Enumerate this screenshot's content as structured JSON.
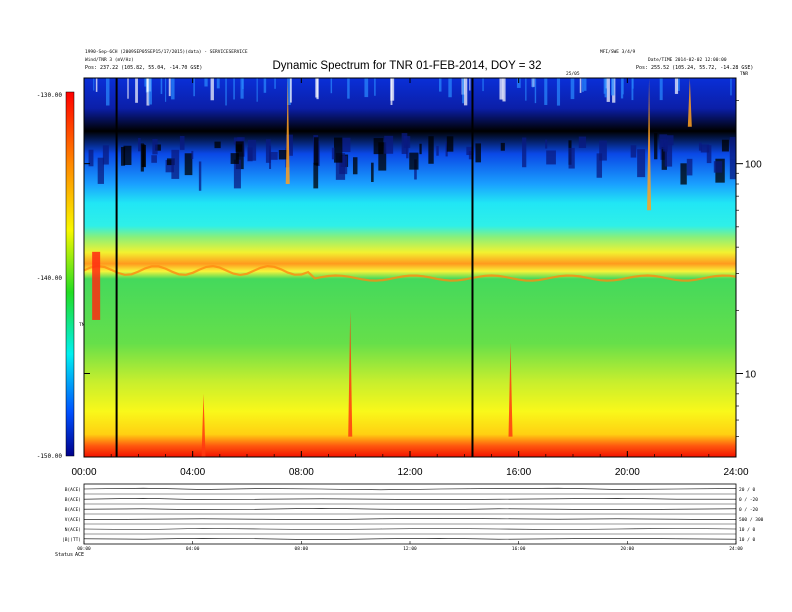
{
  "chart_data": [
    {
      "type": "heatmap",
      "title": "Dynamic Spectrum for TNR 01-FEB-2014, DOY = 32",
      "header_left": [
        "1990-Sep-6CH (2009SEP05SEP15/17/2015)(data) - SERVICESERVICE",
        "Wind/TNR 3 (mV/Hz)",
        "Pos: 237.22 (105.82, 55.04, -14.70 GSE)"
      ],
      "header_right": [
        "MFI/SWE 3/4/9",
        "Date/TIME 2014-02-02 12:00:00",
        "Pos: 255.52 (105.24, 55.72, -14.28 GSE)"
      ],
      "top_axis_marker": "25/05",
      "top_right_marker": "TNR",
      "colorbar_label": "TNR",
      "colorbar_ticks": [
        "-130.00",
        "-140.00",
        "-150.00"
      ],
      "colorbar_range": [
        -150,
        -130
      ],
      "x_ticks": [
        "00:00",
        "04:00",
        "08:00",
        "12:00",
        "16:00",
        "20:00",
        "24:00"
      ],
      "x_range_hours": [
        0,
        24
      ],
      "y_scale": "log",
      "y_ticks": [
        "100",
        "10"
      ],
      "y_tick_values": [
        100,
        10
      ],
      "y_range_khz": [
        4,
        256
      ],
      "data_gap_lines_hours": [
        1.2,
        14.3
      ],
      "bands": [
        {
          "name": "strong-low-frequency-emission",
          "freq_range": [
            4,
            5
          ],
          "level": -130
        },
        {
          "name": "yellow-continuum",
          "freq_range": [
            5,
            12
          ],
          "level": -136
        },
        {
          "name": "green-background",
          "freq_range": [
            12,
            28
          ],
          "level": -141
        },
        {
          "name": "yellow-orange-plasma-line",
          "freq_range": [
            28,
            35
          ],
          "level": -137
        },
        {
          "name": "cyan-band",
          "freq_range": [
            35,
            70
          ],
          "level": -145
        },
        {
          "name": "blue-high-frequency",
          "freq_range": [
            70,
            256
          ],
          "level": -148
        }
      ],
      "bursts": [
        {
          "time_hours": 9.8,
          "freq_range": [
            5,
            20
          ]
        },
        {
          "time_hours": 15.7,
          "freq_range": [
            5,
            14
          ]
        },
        {
          "time_hours": 4.4,
          "freq_range": [
            4,
            8
          ]
        },
        {
          "time_hours": 20.8,
          "freq_range": [
            60,
            256
          ]
        },
        {
          "time_hours": 22.3,
          "freq_range": [
            150,
            256
          ]
        },
        {
          "time_hours": 7.5,
          "freq_range": [
            80,
            256
          ]
        }
      ]
    },
    {
      "type": "line",
      "panels": [
        {
          "label": "B(ACE)",
          "right": "20 / 0",
          "values": [
            3,
            3.2,
            2.9,
            3.1,
            3,
            2.8,
            3,
            3.1,
            3.2,
            2.9,
            3,
            3.1
          ]
        },
        {
          "label": "B(ACE)",
          "right": "0 / -20",
          "values": [
            1,
            1.2,
            0.9,
            1,
            1.1,
            1,
            0.9,
            1,
            1.1,
            1.2,
            1,
            1
          ]
        },
        {
          "label": "B(ACE)",
          "right": "0 / -20",
          "values": [
            2,
            2.1,
            1.9,
            2,
            2.2,
            2,
            1.9,
            2.1,
            2,
            1.9,
            2,
            2.1
          ]
        },
        {
          "label": "V(ACE)",
          "right": "500 / 300",
          "values": [
            4,
            4.1,
            4.2,
            4.1,
            4,
            4.2,
            4.3,
            4.2,
            4.1,
            4.2,
            4.1,
            4
          ]
        },
        {
          "label": "N(ACE)",
          "right": "10 / 0",
          "values": [
            1.5,
            1.4,
            1.6,
            1.5,
            1.4,
            1.5,
            1.6,
            1.5,
            1.4,
            1.5,
            1.6,
            1.5
          ]
        },
        {
          "label": "|B|(TT)",
          "right": "10 / 0",
          "values": [
            2.5,
            2.4,
            2.6,
            2.5,
            2.3,
            2.5,
            2.6,
            2.4,
            2.5,
            2.6,
            2.5,
            2.4
          ]
        }
      ],
      "x_ticks": [
        "00:00",
        "04:00",
        "08:00",
        "12:00",
        "16:00",
        "20:00",
        "24:00"
      ],
      "status_label": "Status",
      "status_value": "ACE"
    }
  ]
}
